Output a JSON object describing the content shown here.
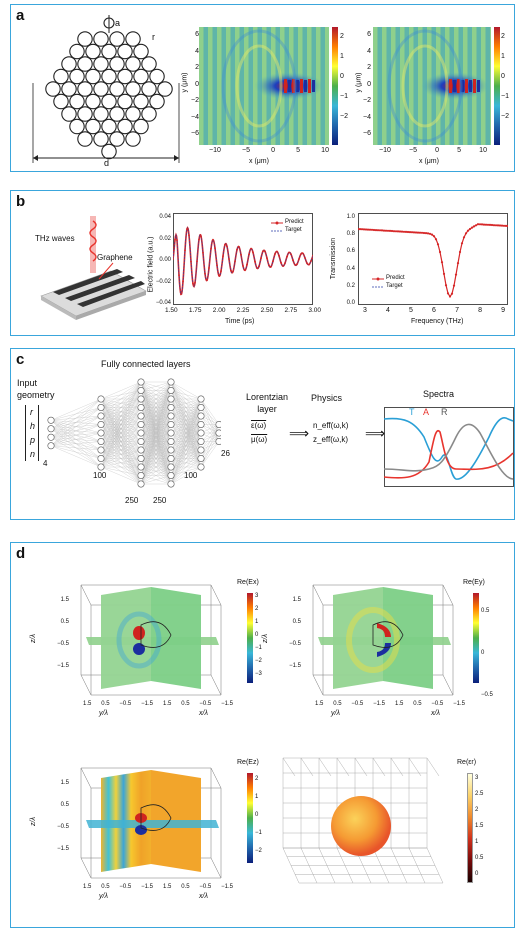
{
  "panels": {
    "a": {
      "label": "a",
      "geom_labels": {
        "a": "a",
        "r": "r",
        "d": "d"
      },
      "field_map_1": {
        "ylabel": "y (μm)",
        "xlabel": "x (μm)",
        "xticks": [
          "−10",
          "−5",
          "0",
          "5",
          "10"
        ],
        "yticks": [
          "6",
          "4",
          "2",
          "0",
          "−2",
          "−4",
          "−6"
        ],
        "cbar_ticks": [
          "2",
          "1",
          "0",
          "−1",
          "−2"
        ]
      },
      "field_map_2": {
        "ylabel": "y (μm)",
        "xlabel": "x (μm)",
        "xticks": [
          "−10",
          "−5",
          "0",
          "5",
          "10"
        ],
        "yticks": [
          "6",
          "4",
          "2",
          "0",
          "−2",
          "−4",
          "−6"
        ],
        "cbar_ticks": [
          "2",
          "1",
          "0",
          "−1",
          "−2"
        ]
      }
    },
    "b": {
      "label": "b",
      "illustration": {
        "thz_label": "THz waves",
        "graphene_label": "Graphene"
      },
      "time_plot": {
        "ylabel": "Electric field (a.u.)",
        "xlabel": "Time (ps)",
        "xticks": [
          "1.50",
          "1.75",
          "2.00",
          "2.25",
          "2.50",
          "2.75",
          "3.00"
        ],
        "yticks": [
          "0.04",
          "0.02",
          "0.00",
          "−0.02",
          "−0.04"
        ],
        "legend": [
          "Predict",
          "Target"
        ]
      },
      "freq_plot": {
        "ylabel": "Transmission",
        "xlabel": "Frequency (THz)",
        "xticks": [
          "3",
          "4",
          "5",
          "6",
          "7",
          "8",
          "9"
        ],
        "yticks": [
          "1.0",
          "0.8",
          "0.6",
          "0.4",
          "0.2",
          "0.0"
        ],
        "legend": [
          "Predict",
          "Target"
        ]
      }
    },
    "c": {
      "label": "c",
      "input_title": "Input geometry",
      "input_params": [
        "r",
        "h",
        "p",
        "n"
      ],
      "fc_title": "Fully connected layers",
      "layer_sizes": [
        "4",
        "100",
        "250",
        "250",
        "100",
        "26"
      ],
      "lorentz_title": "Lorentzian layer",
      "lorentz_eps": "ε(ω)",
      "lorentz_mu": "μ(ω)",
      "physics_title": "Physics",
      "physics_n": "n_eff(ω,k)",
      "physics_z": "z_eff(ω,k)",
      "spectra_title": "Spectra",
      "spectra_legend": {
        "T": "T",
        "A": "A",
        "R": "R"
      },
      "colors": {
        "T": "#2a9fd6",
        "A": "#e8352e",
        "R": "#8a8a8a"
      }
    },
    "d": {
      "label": "d",
      "plot1": {
        "title": "Re(Ex)",
        "zlabel": "z/λ",
        "ylabel": "y/λ",
        "xlabel": "x/λ",
        "cbar_ticks": [
          "3",
          "2",
          "1",
          "0",
          "−1",
          "−2",
          "−3"
        ]
      },
      "plot2": {
        "title": "Re(Ey)",
        "zlabel": "z/λ",
        "ylabel": "y/λ",
        "xlabel": "x/λ",
        "cbar_ticks": [
          "0.5",
          "0",
          "−0.5"
        ]
      },
      "plot3": {
        "title": "Re(Ez)",
        "zlabel": "z/λ",
        "ylabel": "y/λ",
        "xlabel": "x/λ",
        "cbar_ticks": [
          "2",
          "1",
          "0",
          "−1",
          "−2"
        ]
      },
      "plot4": {
        "title": "Re(εr)",
        "cbar_ticks": [
          "3",
          "2.5",
          "2",
          "1.5",
          "1",
          "0.5",
          "0"
        ]
      },
      "axis_ticks": [
        "1.5",
        "0.5",
        "−0.5",
        "−1.5"
      ]
    }
  }
}
